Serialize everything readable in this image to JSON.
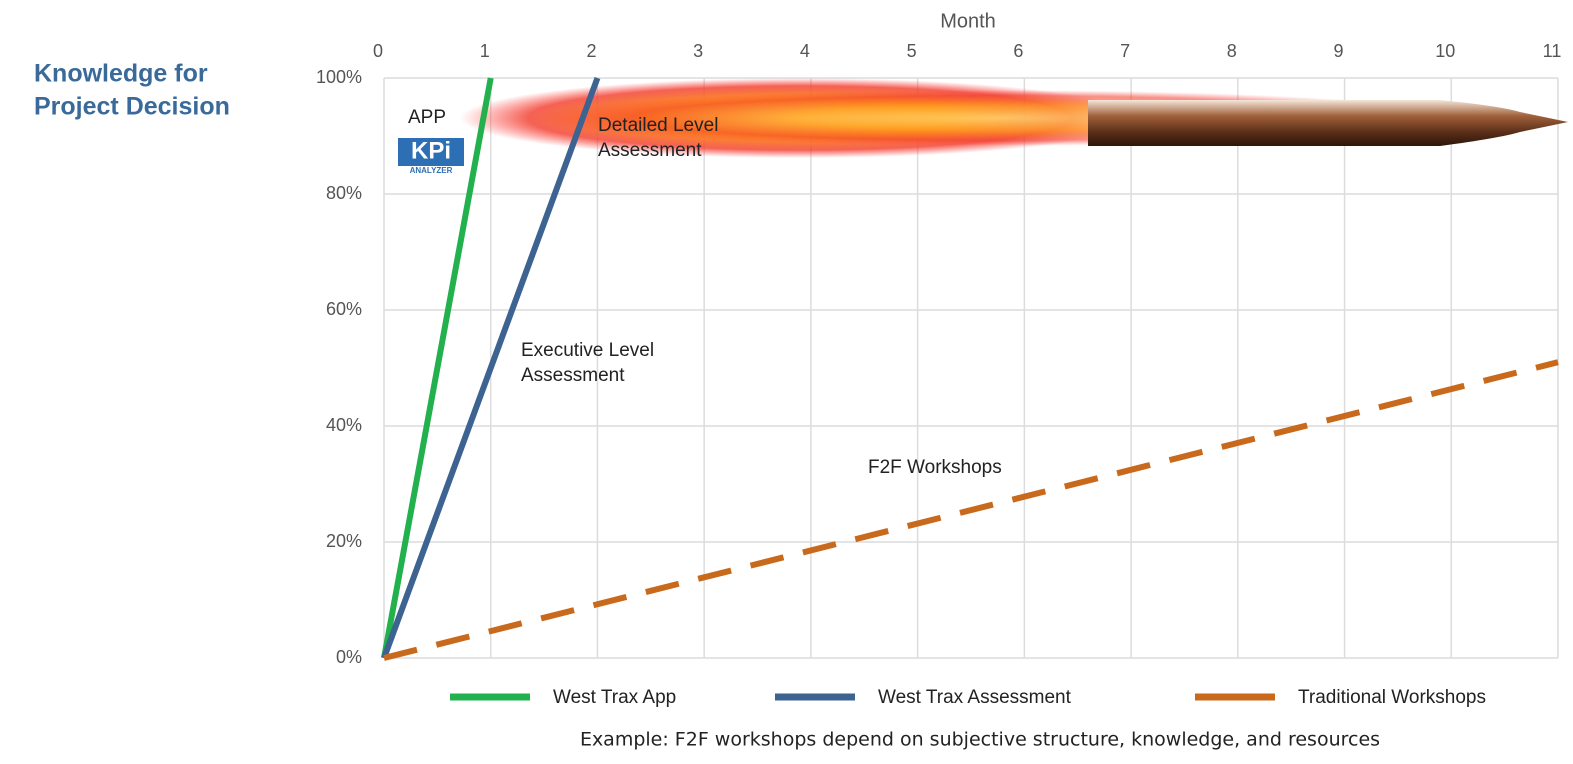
{
  "chart_data": {
    "type": "line",
    "side_title": [
      "Knowledge for",
      "Project Decision"
    ],
    "x_label": "Month",
    "caption": "Example: F2F workshops depend on subjective structure, knowledge, and resources",
    "xlim": [
      0,
      11
    ],
    "xticks": [
      0,
      1,
      2,
      3,
      4,
      5,
      6,
      7,
      8,
      9,
      10,
      11
    ],
    "ylim": [
      0,
      100
    ],
    "yticks": [
      {
        "value": 0,
        "label": "0%"
      },
      {
        "value": 20,
        "label": "20%"
      },
      {
        "value": 40,
        "label": "40%"
      },
      {
        "value": 60,
        "label": "60%"
      },
      {
        "value": 80,
        "label": "80%"
      },
      {
        "value": 100,
        "label": "100%"
      }
    ],
    "grid": true,
    "series": [
      {
        "name": "West Trax App",
        "color": "#22b14c",
        "style": "solid",
        "x": [
          0,
          1
        ],
        "values": [
          0,
          100
        ]
      },
      {
        "name": "West Trax Assessment",
        "color": "#3d6391",
        "style": "solid",
        "x": [
          0,
          2
        ],
        "values": [
          0,
          100
        ]
      },
      {
        "name": "Traditional Workshops",
        "color": "#c8691c",
        "style": "dashed",
        "x": [
          0,
          11
        ],
        "values": [
          0,
          51
        ]
      }
    ],
    "annotations": [
      {
        "lines": [
          "APP"
        ]
      },
      {
        "lines": [
          "Detailed Level",
          "Assessment"
        ]
      },
      {
        "lines": [
          "Executive Level",
          "Assessment"
        ]
      },
      {
        "lines": [
          "F2F Workshops"
        ]
      }
    ],
    "logo": {
      "mark": "KPi",
      "caption": "ANALYZER"
    }
  }
}
